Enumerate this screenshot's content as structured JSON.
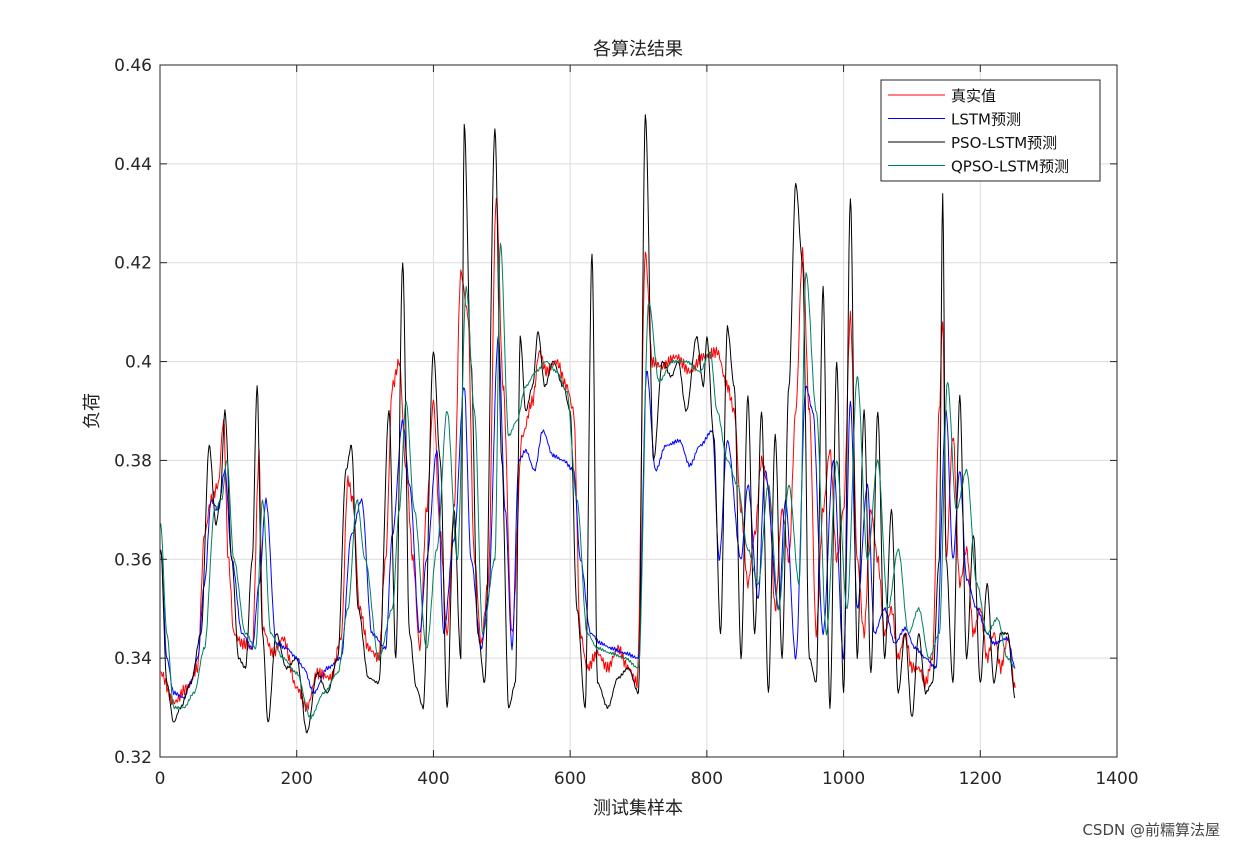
{
  "chart_data": {
    "type": "line",
    "title": "各算法结果",
    "xlabel": "测试集样本",
    "ylabel": "负荷",
    "xlim": [
      0,
      1400
    ],
    "ylim": [
      0.32,
      0.46
    ],
    "xticks": [
      "0",
      "200",
      "400",
      "600",
      "800",
      "1000",
      "1200",
      "1400"
    ],
    "yticks": [
      "0.32",
      "0.34",
      "0.36",
      "0.38",
      "0.4",
      "0.42",
      "0.44",
      "0.46"
    ],
    "grid": true,
    "legend_position": "top-right",
    "x_range": [
      1,
      1251
    ],
    "series": [
      {
        "name": "真实值",
        "color": "#ff0000",
        "x": [
          1,
          20,
          40,
          55,
          65,
          75,
          85,
          93,
          100,
          108,
          120,
          135,
          145,
          150,
          165,
          180,
          200,
          215,
          230,
          250,
          265,
          275,
          282,
          292,
          305,
          320,
          330,
          340,
          350,
          360,
          370,
          380,
          390,
          400,
          410,
          420,
          430,
          440,
          450,
          460,
          470,
          480,
          492,
          502,
          515,
          530,
          545,
          555,
          565,
          580,
          595,
          605,
          615,
          625,
          640,
          655,
          670,
          685,
          698,
          710,
          720,
          735,
          755,
          775,
          795,
          815,
          830,
          840,
          850,
          860,
          870,
          880,
          890,
          900,
          910,
          920,
          930,
          940,
          950,
          960,
          970,
          980,
          990,
          1000,
          1010,
          1020,
          1030,
          1040,
          1050,
          1060,
          1070,
          1080,
          1090,
          1100,
          1110,
          1120,
          1130,
          1140,
          1145,
          1150,
          1160,
          1170,
          1180,
          1190,
          1200,
          1210,
          1220,
          1230,
          1240,
          1251
        ],
        "values": [
          0.337,
          0.331,
          0.334,
          0.338,
          0.365,
          0.372,
          0.375,
          0.388,
          0.36,
          0.345,
          0.343,
          0.342,
          0.381,
          0.346,
          0.341,
          0.344,
          0.334,
          0.33,
          0.337,
          0.336,
          0.344,
          0.376,
          0.372,
          0.35,
          0.342,
          0.34,
          0.36,
          0.395,
          0.4,
          0.378,
          0.36,
          0.342,
          0.37,
          0.392,
          0.365,
          0.345,
          0.37,
          0.418,
          0.41,
          0.36,
          0.343,
          0.355,
          0.433,
          0.395,
          0.345,
          0.385,
          0.392,
          0.402,
          0.398,
          0.4,
          0.395,
          0.39,
          0.345,
          0.338,
          0.341,
          0.338,
          0.342,
          0.338,
          0.335,
          0.422,
          0.4,
          0.399,
          0.401,
          0.398,
          0.401,
          0.402,
          0.395,
          0.39,
          0.37,
          0.355,
          0.365,
          0.38,
          0.375,
          0.35,
          0.37,
          0.36,
          0.39,
          0.422,
          0.39,
          0.345,
          0.37,
          0.382,
          0.36,
          0.37,
          0.409,
          0.36,
          0.345,
          0.37,
          0.36,
          0.345,
          0.35,
          0.34,
          0.345,
          0.338,
          0.338,
          0.335,
          0.34,
          0.39,
          0.409,
          0.36,
          0.385,
          0.355,
          0.362,
          0.345,
          0.35,
          0.34,
          0.345,
          0.338,
          0.344,
          0.334
        ]
      },
      {
        "name": "LSTM预测",
        "color": "#0000ff",
        "x": [
          1,
          10,
          20,
          35,
          45,
          55,
          65,
          75,
          85,
          95,
          105,
          120,
          135,
          145,
          155,
          170,
          185,
          200,
          210,
          225,
          245,
          265,
          280,
          295,
          310,
          330,
          340,
          355,
          365,
          380,
          390,
          405,
          415,
          430,
          445,
          455,
          470,
          480,
          495,
          505,
          515,
          525,
          535,
          548,
          560,
          575,
          590,
          605,
          615,
          630,
          645,
          660,
          680,
          700,
          712,
          725,
          740,
          760,
          775,
          790,
          808,
          818,
          830,
          850,
          860,
          875,
          885,
          905,
          915,
          930,
          945,
          955,
          970,
          985,
          1000,
          1010,
          1020,
          1035,
          1045,
          1060,
          1075,
          1090,
          1105,
          1120,
          1135,
          1150,
          1160,
          1170,
          1180,
          1195,
          1210,
          1220,
          1240,
          1251
        ],
        "values": [
          0.362,
          0.34,
          0.333,
          0.332,
          0.335,
          0.34,
          0.355,
          0.372,
          0.37,
          0.378,
          0.36,
          0.345,
          0.342,
          0.355,
          0.372,
          0.343,
          0.342,
          0.34,
          0.338,
          0.333,
          0.338,
          0.34,
          0.365,
          0.372,
          0.345,
          0.342,
          0.365,
          0.388,
          0.375,
          0.345,
          0.36,
          0.382,
          0.345,
          0.364,
          0.395,
          0.36,
          0.342,
          0.352,
          0.405,
          0.37,
          0.342,
          0.38,
          0.382,
          0.378,
          0.386,
          0.381,
          0.38,
          0.378,
          0.36,
          0.345,
          0.343,
          0.342,
          0.341,
          0.34,
          0.398,
          0.378,
          0.383,
          0.384,
          0.379,
          0.383,
          0.386,
          0.36,
          0.384,
          0.36,
          0.375,
          0.352,
          0.378,
          0.35,
          0.372,
          0.34,
          0.395,
          0.39,
          0.345,
          0.38,
          0.34,
          0.392,
          0.35,
          0.375,
          0.345,
          0.35,
          0.343,
          0.346,
          0.342,
          0.34,
          0.338,
          0.39,
          0.36,
          0.378,
          0.356,
          0.35,
          0.345,
          0.343,
          0.344,
          0.338
        ]
      },
      {
        "name": "PSO-LSTM预测",
        "color": "#000000",
        "x": [
          1,
          10,
          20,
          30,
          45,
          60,
          72,
          82,
          88,
          95,
          105,
          115,
          125,
          135,
          142,
          150,
          158,
          170,
          185,
          200,
          215,
          230,
          245,
          260,
          272,
          280,
          290,
          305,
          320,
          335,
          345,
          355,
          365,
          375,
          385,
          400,
          410,
          420,
          430,
          440,
          445,
          455,
          465,
          475,
          490,
          500,
          510,
          520,
          527,
          535,
          545,
          553,
          563,
          575,
          590,
          600,
          610,
          622,
          632,
          640,
          655,
          670,
          685,
          700,
          710,
          722,
          735,
          748,
          758,
          770,
          785,
          795,
          800,
          810,
          820,
          830,
          840,
          850,
          860,
          870,
          880,
          890,
          900,
          910,
          920,
          930,
          940,
          950,
          960,
          970,
          980,
          990,
          1000,
          1010,
          1020,
          1030,
          1040,
          1050,
          1060,
          1070,
          1080,
          1090,
          1100,
          1110,
          1120,
          1130,
          1140,
          1145,
          1150,
          1160,
          1170,
          1180,
          1190,
          1200,
          1210,
          1220,
          1230,
          1240,
          1251
        ],
        "values": [
          0.362,
          0.335,
          0.327,
          0.33,
          0.335,
          0.345,
          0.383,
          0.367,
          0.372,
          0.39,
          0.36,
          0.34,
          0.338,
          0.36,
          0.395,
          0.345,
          0.327,
          0.345,
          0.338,
          0.34,
          0.325,
          0.337,
          0.333,
          0.34,
          0.378,
          0.383,
          0.35,
          0.336,
          0.335,
          0.39,
          0.34,
          0.42,
          0.345,
          0.334,
          0.33,
          0.402,
          0.38,
          0.33,
          0.37,
          0.34,
          0.448,
          0.4,
          0.345,
          0.335,
          0.447,
          0.38,
          0.33,
          0.335,
          0.405,
          0.39,
          0.395,
          0.406,
          0.395,
          0.4,
          0.395,
          0.39,
          0.35,
          0.33,
          0.422,
          0.335,
          0.33,
          0.336,
          0.338,
          0.333,
          0.45,
          0.38,
          0.4,
          0.397,
          0.4,
          0.39,
          0.405,
          0.395,
          0.405,
          0.385,
          0.345,
          0.407,
          0.395,
          0.34,
          0.393,
          0.345,
          0.39,
          0.333,
          0.385,
          0.34,
          0.395,
          0.436,
          0.42,
          0.34,
          0.335,
          0.415,
          0.33,
          0.4,
          0.333,
          0.433,
          0.34,
          0.39,
          0.337,
          0.39,
          0.34,
          0.37,
          0.333,
          0.345,
          0.328,
          0.345,
          0.333,
          0.335,
          0.36,
          0.434,
          0.36,
          0.335,
          0.393,
          0.34,
          0.365,
          0.335,
          0.355,
          0.335,
          0.345,
          0.345,
          0.332
        ]
      },
      {
        "name": "QPSO-LSTM预测",
        "color": "#008060",
        "x": [
          1,
          10,
          20,
          35,
          50,
          65,
          80,
          90,
          98,
          108,
          125,
          140,
          150,
          162,
          180,
          200,
          220,
          240,
          260,
          275,
          288,
          300,
          320,
          340,
          350,
          360,
          372,
          390,
          405,
          420,
          435,
          448,
          460,
          472,
          490,
          498,
          510,
          522,
          535,
          550,
          565,
          580,
          595,
          610,
          625,
          640,
          660,
          680,
          700,
          715,
          730,
          750,
          770,
          790,
          805,
          815,
          830,
          845,
          860,
          875,
          890,
          905,
          920,
          935,
          945,
          960,
          975,
          990,
          1005,
          1020,
          1035,
          1050,
          1065,
          1080,
          1095,
          1110,
          1125,
          1140,
          1152,
          1165,
          1180,
          1195,
          1210,
          1225,
          1240,
          1251
        ],
        "values": [
          0.367,
          0.345,
          0.33,
          0.33,
          0.333,
          0.342,
          0.37,
          0.372,
          0.38,
          0.36,
          0.345,
          0.342,
          0.372,
          0.345,
          0.34,
          0.337,
          0.328,
          0.333,
          0.337,
          0.35,
          0.372,
          0.36,
          0.34,
          0.35,
          0.37,
          0.392,
          0.37,
          0.342,
          0.362,
          0.39,
          0.36,
          0.415,
          0.39,
          0.345,
          0.36,
          0.424,
          0.385,
          0.388,
          0.395,
          0.398,
          0.4,
          0.398,
          0.394,
          0.372,
          0.345,
          0.342,
          0.341,
          0.34,
          0.338,
          0.412,
          0.396,
          0.4,
          0.4,
          0.398,
          0.402,
          0.39,
          0.38,
          0.375,
          0.362,
          0.355,
          0.375,
          0.35,
          0.375,
          0.355,
          0.418,
          0.39,
          0.345,
          0.38,
          0.35,
          0.397,
          0.36,
          0.38,
          0.35,
          0.362,
          0.345,
          0.35,
          0.34,
          0.345,
          0.396,
          0.37,
          0.378,
          0.355,
          0.345,
          0.348,
          0.34,
          0.338
        ]
      }
    ]
  },
  "watermark": "CSDN @前糯算法屋"
}
